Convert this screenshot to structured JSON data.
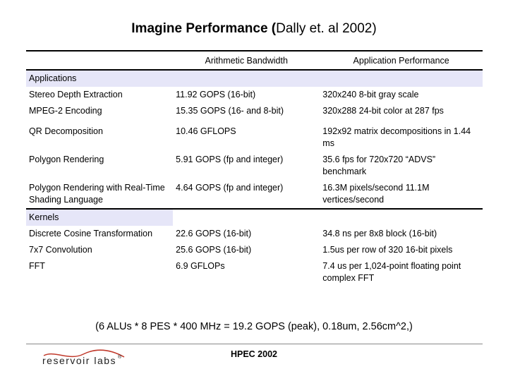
{
  "title": {
    "bold": "Imagine Performance (",
    "normal": "Dally et. al 2002)"
  },
  "table": {
    "headers": [
      "",
      "Arithmetic Bandwidth",
      "Application Performance"
    ],
    "sections": [
      {
        "label": "Applications",
        "rows": [
          [
            "Stereo Depth Extraction",
            "11.92 GOPS (16-bit)",
            "320x240 8-bit gray scale"
          ],
          [
            "MPEG-2 Encoding",
            "15.35 GOPS (16- and 8-bit)",
            "320x288 24-bit color at 287 fps"
          ],
          [
            "QR Decomposition",
            "10.46 GFLOPS",
            "192x92 matrix decompositions in 1.44 ms"
          ],
          [
            "Polygon Rendering",
            "5.91 GOPS (fp and integer)",
            "35.6 fps for 720x720 “ADVS” benchmark"
          ],
          [
            "Polygon Rendering with Real-Time Shading Language",
            "4.64 GOPS (fp and integer)",
            "16.3M pixels/second 11.1M vertices/second"
          ]
        ]
      },
      {
        "label": "Kernels",
        "rows": [
          [
            "Discrete Cosine Transformation",
            "22.6 GOPS (16-bit)",
            "34.8 ns per 8x8 block (16-bit)"
          ],
          [
            "7x7 Convolution",
            "25.6 GOPS (16-bit)",
            "1.5us per row of 320 16-bit pixels"
          ],
          [
            "FFT",
            "6.9 GFLOPs",
            "7.4 us per 1,024-point floating point complex FFT"
          ]
        ]
      }
    ]
  },
  "footnote": "(6 ALUs * 8 PES * 400 MHz = 19.2 GOPS (peak), 0.18um, 2.56cm^2,)",
  "footer": {
    "logo_text": "reservoir labs",
    "logo_mark": "®",
    "center": "HPEC 2002"
  },
  "colors": {
    "section_bg": "#e6e6f8",
    "logo_swoosh": "#c0392b"
  }
}
